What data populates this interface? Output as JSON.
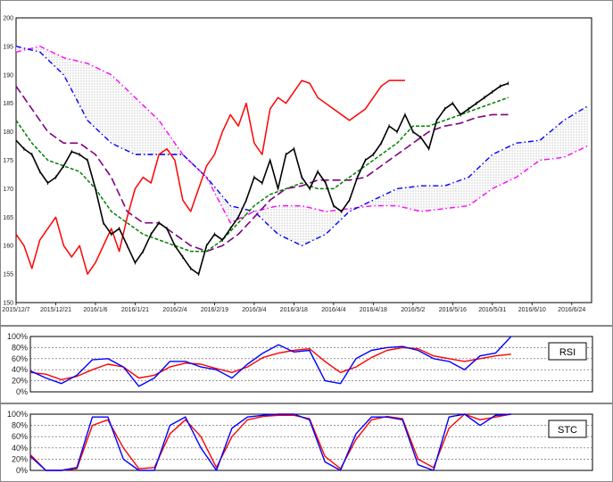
{
  "chart_data": [
    {
      "type": "line",
      "name": "ichimoku",
      "ylim": [
        150,
        200
      ],
      "yticks": [
        150,
        155,
        160,
        165,
        170,
        175,
        180,
        185,
        190,
        195,
        200
      ],
      "x_index_range": [
        0,
        145
      ],
      "xticks": [
        {
          "i": 0,
          "label": "2015/12/7"
        },
        {
          "i": 10,
          "label": "2015/12/21"
        },
        {
          "i": 20,
          "label": "2016/1/6"
        },
        {
          "i": 30,
          "label": "2016/1/21"
        },
        {
          "i": 40,
          "label": "2016/2/4"
        },
        {
          "i": 50,
          "label": "2016/2/19"
        },
        {
          "i": 60,
          "label": "2016/3/4"
        },
        {
          "i": 70,
          "label": "2016/3/18"
        },
        {
          "i": 80,
          "label": "2016/4/4"
        },
        {
          "i": 90,
          "label": "2016/4/18"
        },
        {
          "i": 100,
          "label": "2016/5/2"
        },
        {
          "i": 110,
          "label": "2016/5/16"
        },
        {
          "i": 120,
          "label": "2016/5/31"
        },
        {
          "i": 130,
          "label": "2016/6/10"
        },
        {
          "i": 140,
          "label": "2016/6/24"
        }
      ],
      "colors": {
        "price": "#000000",
        "lagging": "#ff0000",
        "base": "#800080",
        "conversion": "#008000",
        "spanA": "#ff00ff",
        "spanB": "#0000ff",
        "cloud": "#999999"
      },
      "series": [
        {
          "key": "price",
          "x": [
            0,
            2,
            4,
            6,
            8,
            10,
            12,
            14,
            16,
            18,
            20,
            22,
            24,
            26,
            28,
            30,
            32,
            34,
            36,
            38,
            40,
            42,
            44,
            46,
            48,
            50,
            52,
            54,
            56,
            58,
            60,
            62,
            64,
            66,
            68,
            70,
            72,
            74,
            76,
            78,
            80,
            82,
            84,
            86,
            88,
            90,
            92,
            94,
            96,
            98,
            100,
            102,
            104,
            106,
            108,
            110,
            112,
            114,
            116,
            118,
            120,
            122,
            124
          ],
          "y": [
            178.5,
            177,
            176,
            173,
            171,
            172,
            174,
            176.5,
            176,
            175,
            170,
            164,
            162,
            163,
            160,
            157,
            159,
            162,
            164,
            163,
            160,
            158,
            156,
            155,
            160,
            162,
            161,
            163,
            165,
            168,
            172,
            171,
            175,
            170,
            176,
            177,
            172,
            170,
            173,
            171,
            167,
            166,
            168,
            172,
            175,
            176,
            178,
            181,
            180,
            183,
            180,
            179,
            177,
            182,
            184,
            185,
            183,
            184,
            185,
            186,
            187,
            188,
            188.5
          ]
        },
        {
          "key": "lagging",
          "x": [
            0,
            2,
            4,
            6,
            8,
            10,
            12,
            14,
            16,
            18,
            20,
            22,
            24,
            26,
            28,
            30,
            32,
            34,
            36,
            38,
            40,
            42,
            44,
            46,
            48,
            50,
            52,
            54,
            56,
            58,
            60,
            62,
            64,
            66,
            68,
            70,
            72,
            74,
            76,
            78,
            80,
            82,
            84,
            86,
            88,
            90,
            92,
            94,
            96,
            98
          ],
          "y": [
            162,
            160,
            156,
            161,
            163,
            165,
            160,
            158,
            160,
            155,
            157,
            160,
            163,
            159,
            165,
            170,
            172,
            171,
            176,
            177,
            175,
            168,
            166,
            170,
            174,
            176,
            180,
            183,
            181,
            185,
            178,
            176,
            184,
            186,
            185,
            187,
            189,
            188.5,
            186,
            185,
            184,
            183,
            182,
            183,
            184,
            186,
            188,
            189,
            189,
            189
          ]
        },
        {
          "key": "base",
          "x": [
            0,
            4,
            8,
            12,
            16,
            20,
            24,
            28,
            32,
            36,
            40,
            44,
            48,
            52,
            56,
            60,
            64,
            68,
            72,
            76,
            80,
            84,
            88,
            92,
            96,
            100,
            104,
            108,
            112,
            116,
            120,
            124
          ],
          "y": [
            188,
            184,
            180,
            178,
            178,
            176,
            172,
            166,
            164,
            164,
            162,
            160,
            159,
            160,
            162,
            165,
            168,
            170,
            170.5,
            171.5,
            171.5,
            171.5,
            172,
            174,
            176,
            178,
            180,
            181,
            181.5,
            182.5,
            183,
            183
          ]
        },
        {
          "key": "conversion",
          "x": [
            0,
            4,
            8,
            12,
            16,
            20,
            24,
            28,
            32,
            36,
            40,
            44,
            48,
            52,
            56,
            60,
            64,
            68,
            72,
            76,
            80,
            84,
            88,
            92,
            96,
            100,
            104,
            108,
            112,
            116,
            120,
            124
          ],
          "y": [
            182,
            178,
            175,
            174,
            173,
            170,
            166,
            164,
            162,
            161,
            160,
            159,
            159,
            161,
            164,
            167,
            169,
            170,
            171,
            170,
            170,
            172,
            174,
            176,
            178,
            181,
            181,
            182,
            183,
            184,
            185,
            186
          ]
        },
        {
          "key": "spanA",
          "x": [
            0,
            6,
            12,
            18,
            24,
            30,
            36,
            42,
            48,
            54,
            60,
            66,
            72,
            78,
            84,
            90,
            96,
            102,
            108,
            114,
            120,
            126,
            132,
            138,
            144
          ],
          "y": [
            194,
            195,
            193,
            192,
            190,
            186,
            182,
            176,
            172,
            164,
            166,
            167,
            167,
            166,
            166.5,
            167,
            167,
            166,
            166.5,
            167,
            170,
            172,
            175,
            175.5,
            177.5
          ]
        },
        {
          "key": "spanB",
          "x": [
            0,
            6,
            12,
            18,
            24,
            30,
            36,
            42,
            48,
            54,
            60,
            66,
            72,
            78,
            84,
            90,
            96,
            102,
            108,
            114,
            120,
            126,
            132,
            138,
            144
          ],
          "y": [
            195,
            194,
            190,
            182,
            178,
            176,
            176,
            176,
            172,
            167,
            166,
            162,
            160,
            162,
            166,
            168,
            170,
            170.5,
            170.5,
            172,
            176,
            178,
            178.5,
            182,
            184.5
          ]
        }
      ]
    },
    {
      "type": "line",
      "name": "rsi",
      "ylim": [
        0,
        100
      ],
      "yticks": [
        "0%",
        "20%",
        "40%",
        "60%",
        "80%",
        "100%"
      ],
      "legend": "RSI",
      "colors": {
        "fast": "#0000ff",
        "slow": "#ff0000"
      },
      "x": [
        0,
        4,
        8,
        12,
        16,
        20,
        24,
        28,
        32,
        36,
        40,
        44,
        48,
        52,
        56,
        60,
        64,
        68,
        72,
        76,
        80,
        84,
        88,
        92,
        96,
        100,
        104,
        108,
        112,
        116,
        120,
        124
      ],
      "series": [
        {
          "key": "fast",
          "values": [
            38,
            25,
            15,
            30,
            58,
            60,
            45,
            10,
            25,
            55,
            55,
            45,
            40,
            25,
            50,
            70,
            85,
            72,
            75,
            20,
            15,
            60,
            75,
            80,
            82,
            75,
            60,
            55,
            40,
            65,
            70,
            100
          ]
        },
        {
          "key": "slow",
          "values": [
            35,
            32,
            22,
            28,
            40,
            50,
            45,
            25,
            30,
            45,
            52,
            50,
            42,
            35,
            45,
            62,
            70,
            75,
            78,
            55,
            35,
            45,
            62,
            75,
            80,
            78,
            65,
            60,
            55,
            60,
            65,
            68
          ]
        }
      ]
    },
    {
      "type": "line",
      "name": "stc",
      "ylim": [
        0,
        100
      ],
      "yticks": [
        "0%",
        "20%",
        "40%",
        "60%",
        "80%",
        "100%"
      ],
      "legend": "STC",
      "colors": {
        "fast": "#0000ff",
        "slow": "#ff0000"
      },
      "x": [
        0,
        4,
        8,
        12,
        16,
        20,
        24,
        28,
        32,
        36,
        40,
        44,
        48,
        52,
        56,
        60,
        64,
        68,
        72,
        76,
        80,
        84,
        88,
        92,
        96,
        100,
        104,
        108,
        112,
        116,
        120,
        124
      ],
      "series": [
        {
          "key": "fast",
          "values": [
            25,
            0,
            0,
            5,
            95,
            95,
            20,
            0,
            0,
            80,
            95,
            40,
            0,
            75,
            95,
            98,
            100,
            100,
            90,
            15,
            0,
            65,
            95,
            95,
            90,
            10,
            0,
            95,
            100,
            80,
            98,
            100
          ]
        },
        {
          "key": "slow",
          "values": [
            28,
            0,
            0,
            3,
            80,
            90,
            40,
            3,
            5,
            65,
            90,
            60,
            5,
            60,
            90,
            96,
            98,
            98,
            92,
            25,
            3,
            55,
            90,
            96,
            92,
            20,
            5,
            75,
            100,
            90,
            95,
            100
          ]
        }
      ]
    }
  ]
}
